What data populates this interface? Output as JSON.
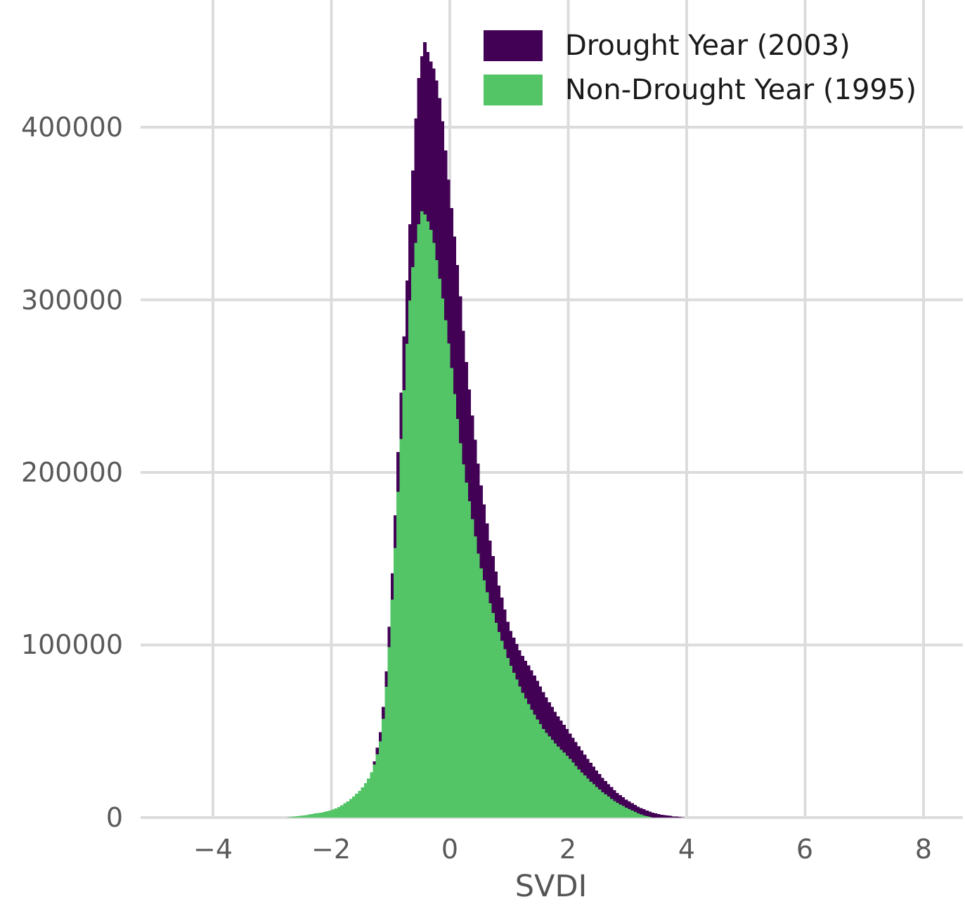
{
  "figure": {
    "background": "#ffffff",
    "title": ""
  },
  "chart_data": {
    "type": "bar",
    "subtype": "overlaid-histogram",
    "title": "",
    "xlabel": "SVDI",
    "ylabel": "",
    "xlim": [
      -5.2,
      8.65
    ],
    "ylim": [
      0,
      470000
    ],
    "bin_width": 0.05,
    "grid": true,
    "legend_position": "upper right",
    "x_ticks": [
      -4,
      -2,
      0,
      2,
      4,
      6,
      8
    ],
    "x_tick_labels": [
      "−4",
      "−2",
      "0",
      "2",
      "4",
      "6",
      "8"
    ],
    "y_ticks": [
      0,
      100000,
      200000,
      300000,
      400000
    ],
    "y_tick_labels": [
      "0",
      "100000",
      "200000",
      "300000",
      "400000"
    ],
    "colors": {
      "grid": "#dcdcdc",
      "tick_label": "#595959",
      "axis_label": "#555555",
      "legend_text": "#1a1a1a"
    },
    "series": [
      {
        "name": "Drought Year (2003)",
        "color": "#420154",
        "draw_order": 1,
        "peak": {
          "x": -0.42,
          "value": 450000
        },
        "x_range": [
          -1.95,
          3.95
        ],
        "points": [
          [
            -1.95,
            300
          ],
          [
            -1.8,
            1500
          ],
          [
            -1.65,
            4500
          ],
          [
            -1.5,
            6000
          ],
          [
            -1.4,
            12000
          ],
          [
            -1.35,
            22000
          ],
          [
            -1.25,
            36000
          ],
          [
            -1.15,
            54000
          ],
          [
            -1.05,
            95000
          ],
          [
            -0.95,
            157000
          ],
          [
            -0.85,
            230000
          ],
          [
            -0.75,
            295000
          ],
          [
            -0.65,
            360000
          ],
          [
            -0.55,
            420000
          ],
          [
            -0.5,
            437000
          ],
          [
            -0.42,
            450000
          ],
          [
            -0.35,
            440000
          ],
          [
            -0.25,
            432000
          ],
          [
            -0.15,
            412000
          ],
          [
            -0.05,
            378000
          ],
          [
            0.05,
            345000
          ],
          [
            0.15,
            312000
          ],
          [
            0.25,
            272000
          ],
          [
            0.35,
            240000
          ],
          [
            0.5,
            198000
          ],
          [
            0.65,
            165000
          ],
          [
            0.8,
            138000
          ],
          [
            1.0,
            110000
          ],
          [
            1.2,
            95000
          ],
          [
            1.4,
            84000
          ],
          [
            1.6,
            71000
          ],
          [
            1.8,
            60000
          ],
          [
            2.0,
            50000
          ],
          [
            2.2,
            40000
          ],
          [
            2.4,
            30500
          ],
          [
            2.6,
            22000
          ],
          [
            2.8,
            15000
          ],
          [
            3.0,
            9800
          ],
          [
            3.2,
            5800
          ],
          [
            3.4,
            3100
          ],
          [
            3.6,
            1500
          ],
          [
            3.8,
            600
          ],
          [
            3.95,
            150
          ]
        ]
      },
      {
        "name": "Non-Drought Year (1995)",
        "color": "#53c567",
        "draw_order": 2,
        "peak": {
          "x": -0.47,
          "value": 352000
        },
        "x_range": [
          -2.75,
          3.4
        ],
        "points": [
          [
            -2.75,
            150
          ],
          [
            -2.6,
            600
          ],
          [
            -2.45,
            1300
          ],
          [
            -2.3,
            2200
          ],
          [
            -2.15,
            3100
          ],
          [
            -2.0,
            4200
          ],
          [
            -1.85,
            6500
          ],
          [
            -1.7,
            10000
          ],
          [
            -1.55,
            14500
          ],
          [
            -1.45,
            18500
          ],
          [
            -1.35,
            24000
          ],
          [
            -1.25,
            33000
          ],
          [
            -1.15,
            48000
          ],
          [
            -1.05,
            85000
          ],
          [
            -0.95,
            140000
          ],
          [
            -0.85,
            205000
          ],
          [
            -0.75,
            262000
          ],
          [
            -0.65,
            312000
          ],
          [
            -0.55,
            340000
          ],
          [
            -0.47,
            352000
          ],
          [
            -0.4,
            348000
          ],
          [
            -0.3,
            338000
          ],
          [
            -0.2,
            318000
          ],
          [
            -0.1,
            295000
          ],
          [
            0.0,
            268000
          ],
          [
            0.1,
            238000
          ],
          [
            0.2,
            210000
          ],
          [
            0.35,
            178000
          ],
          [
            0.5,
            148000
          ],
          [
            0.65,
            127000
          ],
          [
            0.8,
            110000
          ],
          [
            1.0,
            90000
          ],
          [
            1.2,
            74000
          ],
          [
            1.4,
            61000
          ],
          [
            1.6,
            50000
          ],
          [
            1.8,
            42000
          ],
          [
            2.0,
            35000
          ],
          [
            2.2,
            27000
          ],
          [
            2.4,
            20000
          ],
          [
            2.6,
            14000
          ],
          [
            2.8,
            9000
          ],
          [
            3.0,
            5200
          ],
          [
            3.15,
            2800
          ],
          [
            3.3,
            900
          ],
          [
            3.4,
            200
          ]
        ]
      }
    ]
  }
}
